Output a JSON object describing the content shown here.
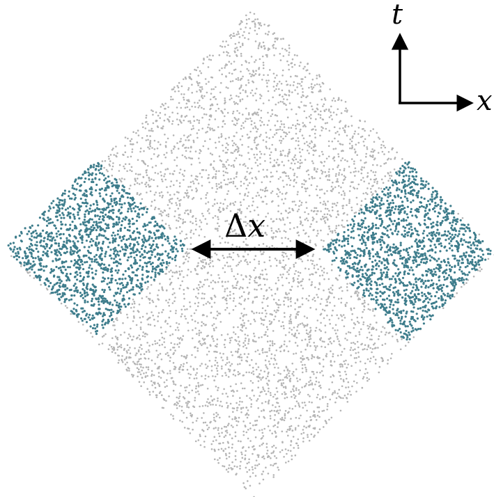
{
  "diagram": {
    "axes": {
      "vertical_label": "t",
      "horizontal_label": "x"
    },
    "separation": {
      "symbol": "Δ",
      "variable": "x"
    },
    "colors": {
      "background_points": "#b4b4b4",
      "highlight_points": "#3e7d8c",
      "arrows": "#000000"
    },
    "regions": {
      "causal_diamond": "gray",
      "left_region": "teal",
      "right_region": "teal"
    }
  }
}
